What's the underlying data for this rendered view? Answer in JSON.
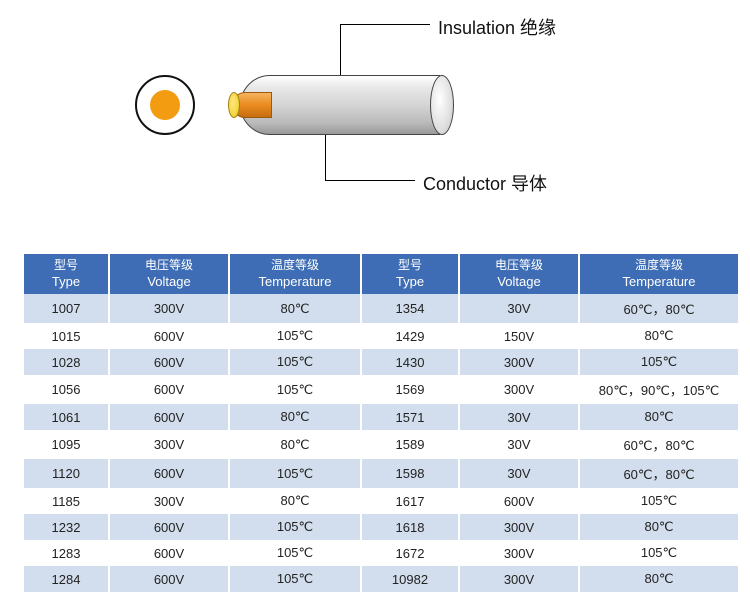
{
  "diagram": {
    "insulation_label": "Insulation 绝缘",
    "conductor_label": "Conductor 导体",
    "colors": {
      "conductor_fill": "#f39c12",
      "insulation_fill_light": "#ffffff",
      "insulation_fill_dark": "#999999",
      "outline": "#111111"
    }
  },
  "table": {
    "header_bg": "#3e6db5",
    "header_fg": "#ffffff",
    "row_odd_bg": "#d2deed",
    "row_even_bg": "#ffffff",
    "columns": [
      {
        "cn": "型号",
        "en": "Type"
      },
      {
        "cn": "电压等级",
        "en": "Voltage"
      },
      {
        "cn": "温度等级",
        "en": "Temperature"
      },
      {
        "cn": "型号",
        "en": "Type"
      },
      {
        "cn": "电压等级",
        "en": "Voltage"
      },
      {
        "cn": "温度等级",
        "en": "Temperature"
      }
    ],
    "rows": [
      [
        "1007",
        "300V",
        "80℃",
        "1354",
        "30V",
        "60℃，80℃"
      ],
      [
        "1015",
        "600V",
        "105℃",
        "1429",
        "150V",
        "80℃"
      ],
      [
        "1028",
        "600V",
        "105℃",
        "1430",
        "300V",
        "105℃"
      ],
      [
        "1056",
        "600V",
        "105℃",
        "1569",
        "300V",
        "80℃，90℃，105℃"
      ],
      [
        "1061",
        "600V",
        "80℃",
        "1571",
        "30V",
        "80℃"
      ],
      [
        "1095",
        "300V",
        "80℃",
        "1589",
        "30V",
        "60℃，80℃"
      ],
      [
        "1120",
        "600V",
        "105℃",
        "1598",
        "30V",
        "60℃，80℃"
      ],
      [
        "1185",
        "300V",
        "80℃",
        "1617",
        "600V",
        "105℃"
      ],
      [
        "1232",
        "600V",
        "105℃",
        "1618",
        "300V",
        "80℃"
      ],
      [
        "1283",
        "600V",
        "105℃",
        "1672",
        "300V",
        "105℃"
      ],
      [
        "1284",
        "600V",
        "105℃",
        "10982",
        "300V",
        "80℃"
      ]
    ]
  }
}
